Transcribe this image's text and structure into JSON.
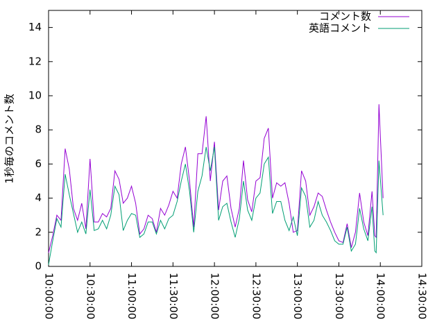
{
  "chart_data": {
    "type": "line",
    "ylabel": "1秒毎のコメント数",
    "x": [
      "10:00:00",
      "10:03:00",
      "10:06:00",
      "10:09:00",
      "10:12:00",
      "10:15:00",
      "10:18:00",
      "10:21:00",
      "10:24:00",
      "10:27:00",
      "10:30:00",
      "10:33:00",
      "10:36:00",
      "10:39:00",
      "10:42:00",
      "10:45:00",
      "10:48:00",
      "10:51:00",
      "10:54:00",
      "10:57:00",
      "11:00:00",
      "11:03:00",
      "11:06:00",
      "11:09:00",
      "11:12:00",
      "11:15:00",
      "11:18:00",
      "11:21:00",
      "11:24:00",
      "11:27:00",
      "11:30:00",
      "11:33:00",
      "11:36:00",
      "11:39:00",
      "11:42:00",
      "11:45:00",
      "11:48:00",
      "11:51:00",
      "11:54:00",
      "11:57:00",
      "12:00:00",
      "12:03:00",
      "12:06:00",
      "12:09:00",
      "12:12:00",
      "12:15:00",
      "12:18:00",
      "12:21:00",
      "12:24:00",
      "12:27:00",
      "12:30:00",
      "12:33:00",
      "12:36:00",
      "12:39:00",
      "12:42:00",
      "12:45:00",
      "12:48:00",
      "12:51:00",
      "12:54:00",
      "12:57:00",
      "13:00:00",
      "13:03:00",
      "13:06:00",
      "13:09:00",
      "13:12:00",
      "13:15:00",
      "13:18:00",
      "13:21:00",
      "13:24:00",
      "13:27:00",
      "13:30:00",
      "13:33:00",
      "13:36:00",
      "13:39:00",
      "13:42:00",
      "13:45:00",
      "13:48:00",
      "13:51:00",
      "13:54:00",
      "13:56:00",
      "13:57:00",
      "13:59:00",
      "14:02:00"
    ],
    "series": [
      {
        "name": "コメント数",
        "color": "#9400d3",
        "values": [
          0.8,
          1.8,
          3.0,
          2.7,
          6.9,
          5.7,
          3.4,
          2.7,
          3.7,
          2.2,
          6.3,
          2.6,
          2.6,
          3.1,
          2.9,
          3.4,
          5.6,
          5.1,
          3.7,
          4.0,
          4.7,
          3.7,
          1.9,
          2.2,
          3.0,
          2.8,
          2.0,
          3.4,
          3.0,
          3.6,
          4.4,
          4.0,
          6.0,
          7.0,
          5.0,
          2.3,
          6.6,
          6.6,
          8.8,
          5.0,
          7.3,
          3.3,
          5.0,
          5.3,
          3.4,
          2.3,
          3.4,
          6.2,
          3.9,
          3.2,
          5.0,
          5.2,
          7.5,
          8.1,
          4.0,
          4.9,
          4.7,
          4.9,
          3.7,
          2.0,
          2.1,
          5.6,
          5.0,
          3.0,
          3.5,
          4.3,
          4.1,
          3.3,
          2.6,
          2.0,
          1.5,
          1.4,
          2.5,
          1.1,
          2.0,
          4.3,
          2.6,
          1.8,
          4.4,
          1.8,
          1.7,
          9.5,
          4.0
        ]
      },
      {
        "name": "英語コメント",
        "color": "#009e73",
        "values": [
          0.1,
          1.5,
          2.8,
          2.3,
          5.4,
          4.2,
          3.1,
          2.0,
          2.6,
          1.9,
          4.5,
          2.1,
          2.2,
          2.7,
          2.2,
          3.0,
          4.7,
          4.2,
          2.1,
          2.7,
          3.1,
          3.0,
          1.7,
          1.9,
          2.6,
          2.6,
          1.9,
          2.7,
          2.2,
          2.8,
          3.0,
          3.8,
          5.0,
          6.0,
          4.4,
          2.0,
          4.4,
          5.3,
          7.0,
          5.6,
          7.0,
          2.7,
          3.5,
          3.7,
          2.6,
          1.7,
          2.8,
          5.0,
          3.3,
          2.7,
          4.0,
          4.3,
          6.0,
          6.4,
          3.1,
          3.8,
          3.8,
          2.7,
          2.1,
          2.9,
          1.8,
          4.6,
          4.1,
          2.3,
          2.7,
          3.8,
          3.0,
          2.6,
          2.1,
          1.5,
          1.3,
          1.3,
          2.3,
          0.9,
          1.3,
          3.4,
          2.2,
          1.5,
          3.5,
          0.9,
          0.8,
          6.2,
          3.0
        ]
      }
    ],
    "xlim": [
      "10:00:00",
      "14:30:00"
    ],
    "xticks": [
      "10:00:00",
      "10:30:00",
      "11:00:00",
      "11:30:00",
      "12:00:00",
      "12:30:00",
      "13:00:00",
      "13:30:00",
      "14:00:00",
      "14:30:00"
    ],
    "ylim": [
      0,
      15
    ],
    "yticks": [
      0,
      2,
      4,
      6,
      8,
      10,
      12,
      14
    ],
    "legend": "top right"
  }
}
